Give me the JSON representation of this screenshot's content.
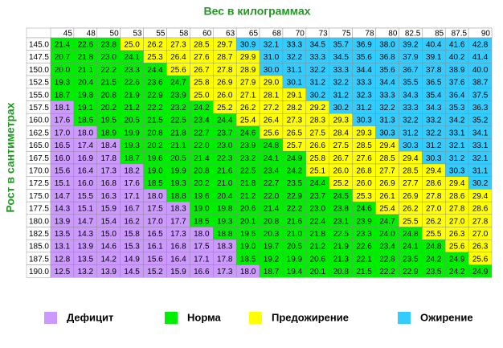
{
  "header": {
    "title": "Вес в килограммах"
  },
  "side_label": "Рост в сантиметрах",
  "table": {
    "columns": [
      "45",
      "48",
      "50",
      "53",
      "55",
      "58",
      "60",
      "63",
      "65",
      "68",
      "70",
      "73",
      "75",
      "78",
      "80",
      "82.5",
      "85",
      "87.5",
      "90"
    ],
    "rows": [
      {
        "height": "145.0",
        "values": [
          "21.4",
          "22.6",
          "23.8",
          "25.0",
          "26.2",
          "27.3",
          "28.5",
          "29.7",
          "30.9",
          "32.1",
          "33.3",
          "34.5",
          "35.7",
          "36.9",
          "38.0",
          "39.2",
          "40.4",
          "41.6",
          "42.8"
        ]
      },
      {
        "height": "147.5",
        "values": [
          "20.7",
          "21.8",
          "23.0",
          "24.1",
          "25.3",
          "26.4",
          "27.6",
          "28.7",
          "29.9",
          "31.0",
          "32.2",
          "33.3",
          "34.5",
          "35.6",
          "36.8",
          "37.9",
          "39.1",
          "40.2",
          "41.4"
        ]
      },
      {
        "height": "150.0",
        "values": [
          "20.0",
          "21.1",
          "22.2",
          "23.3",
          "24.4",
          "25.6",
          "26.7",
          "27.8",
          "28.9",
          "30.0",
          "31.1",
          "32.2",
          "33.3",
          "34.4",
          "35.6",
          "36.7",
          "37.8",
          "38.9",
          "40.0"
        ]
      },
      {
        "height": "152.5",
        "values": [
          "19.3",
          "20.4",
          "21.5",
          "22.6",
          "23.6",
          "24.7",
          "25.8",
          "26.9",
          "27.9",
          "29.0",
          "30.1",
          "31.2",
          "32.2",
          "33.3",
          "34.4",
          "35.5",
          "36.5",
          "37.6",
          "38.7"
        ]
      },
      {
        "height": "155.0",
        "values": [
          "18.7",
          "19.8",
          "20.8",
          "21.9",
          "22.9",
          "23.9",
          "25.0",
          "26.0",
          "27.1",
          "28.1",
          "29.1",
          "30.2",
          "31.2",
          "32.3",
          "33.3",
          "34.3",
          "35.4",
          "36.4",
          "37.5"
        ]
      },
      {
        "height": "157.5",
        "values": [
          "18.1",
          "19.1",
          "20.2",
          "21.2",
          "22.2",
          "23.2",
          "24.2",
          "25.2",
          "26.2",
          "27.2",
          "28.2",
          "29.2",
          "30.2",
          "31.2",
          "32.2",
          "33.3",
          "34.3",
          "35.3",
          "36.3"
        ]
      },
      {
        "height": "160.0",
        "values": [
          "17.6",
          "18.6",
          "19.5",
          "20.5",
          "21.5",
          "22.5",
          "23.4",
          "24.4",
          "25.4",
          "26.4",
          "27.3",
          "28.3",
          "29.3",
          "30.3",
          "31.3",
          "32.2",
          "33.2",
          "34.2",
          "35.2"
        ]
      },
      {
        "height": "162.5",
        "values": [
          "17.0",
          "18.0",
          "18.9",
          "19.9",
          "20.8",
          "21.8",
          "22.7",
          "23.7",
          "24.6",
          "25.6",
          "26.5",
          "27.5",
          "28.4",
          "29.3",
          "30.3",
          "31.2",
          "32.2",
          "33.1",
          "34.1"
        ]
      },
      {
        "height": "165.0",
        "values": [
          "16.5",
          "17.4",
          "18.4",
          "19.3",
          "20.2",
          "21.1",
          "22.0",
          "23.0",
          "23.9",
          "24.8",
          "25.7",
          "26.6",
          "27.5",
          "28.5",
          "29.4",
          "30.3",
          "31.2",
          "32.1",
          "33.1"
        ]
      },
      {
        "height": "167.5",
        "values": [
          "16.0",
          "16.9",
          "17.8",
          "18.7",
          "19.6",
          "20.5",
          "21.4",
          "22.3",
          "23.2",
          "24.1",
          "24.9",
          "25.8",
          "26.7",
          "27.6",
          "28.5",
          "29.4",
          "30.3",
          "31.2",
          "32.1"
        ]
      },
      {
        "height": "170.0",
        "values": [
          "15.6",
          "16.4",
          "17.3",
          "18.2",
          "19.0",
          "19.9",
          "20.8",
          "21.6",
          "22.5",
          "23.4",
          "24.2",
          "25.1",
          "26.0",
          "26.8",
          "27.7",
          "28.5",
          "29.4",
          "30.3",
          "31.1"
        ]
      },
      {
        "height": "172.5",
        "values": [
          "15.1",
          "16.0",
          "16.8",
          "17.6",
          "18.5",
          "19.3",
          "20.2",
          "21.0",
          "21.8",
          "22.7",
          "23.5",
          "24.4",
          "25.2",
          "26.0",
          "26.9",
          "27.7",
          "28.6",
          "29.4",
          "30.2"
        ]
      },
      {
        "height": "175.0",
        "values": [
          "14.7",
          "15.5",
          "16.3",
          "17.1",
          "18.0",
          "18.8",
          "19.6",
          "20.4",
          "21.2",
          "22.0",
          "22.9",
          "23.7",
          "24.5",
          "25.3",
          "26.1",
          "26.9",
          "27.8",
          "28.6",
          "29.4"
        ]
      },
      {
        "height": "177.5",
        "values": [
          "14.3",
          "15.1",
          "15.9",
          "16.7",
          "17.5",
          "18.3",
          "19.0",
          "19.8",
          "20.6",
          "21.4",
          "22.2",
          "23.0",
          "23.8",
          "24.6",
          "25.4",
          "26.2",
          "27.0",
          "27.8",
          "28.6"
        ]
      },
      {
        "height": "180.0",
        "values": [
          "13.9",
          "14.7",
          "15.4",
          "16.2",
          "17.0",
          "17.7",
          "18.5",
          "19.3",
          "20.1",
          "20.8",
          "21.6",
          "22.4",
          "23.1",
          "23.9",
          "24.7",
          "25.5",
          "26.2",
          "27.0",
          "27.8"
        ]
      },
      {
        "height": "182.5",
        "values": [
          "13.5",
          "14.3",
          "15.0",
          "15.8",
          "16.5",
          "17.3",
          "18.0",
          "18.8",
          "19.5",
          "20.3",
          "21.0",
          "21.8",
          "22.5",
          "23.3",
          "24.0",
          "24.8",
          "25.5",
          "26.3",
          "27.0"
        ]
      },
      {
        "height": "185.0",
        "values": [
          "13.1",
          "13.9",
          "14.6",
          "15.3",
          "16.1",
          "16.8",
          "17.5",
          "18.3",
          "19.0",
          "19.7",
          "20.5",
          "21.2",
          "21.9",
          "22.6",
          "23.4",
          "24.1",
          "24.8",
          "25.6",
          "26.3"
        ]
      },
      {
        "height": "187.5",
        "values": [
          "12.8",
          "13.5",
          "14.2",
          "14.9",
          "15.6",
          "16.4",
          "17.1",
          "17.8",
          "18.5",
          "19.2",
          "19.9",
          "20.6",
          "21.3",
          "22.1",
          "22.8",
          "23.5",
          "24.2",
          "24.9",
          "25.6"
        ]
      },
      {
        "height": "190.0",
        "values": [
          "12.5",
          "13.2",
          "13.9",
          "14.5",
          "15.2",
          "15.9",
          "16.6",
          "17.3",
          "18.0",
          "18.7",
          "19.4",
          "20.1",
          "20.8",
          "21.5",
          "22.2",
          "22.9",
          "23.5",
          "24.2",
          "24.9"
        ]
      }
    ]
  },
  "legend": [
    {
      "label": "Дефицит",
      "color": "#cc99ff"
    },
    {
      "label": "Норма",
      "color": "#00ee00"
    },
    {
      "label": "Предожирение",
      "color": "#ffff00"
    },
    {
      "label": "Ожирение",
      "color": "#33ccff"
    }
  ]
}
